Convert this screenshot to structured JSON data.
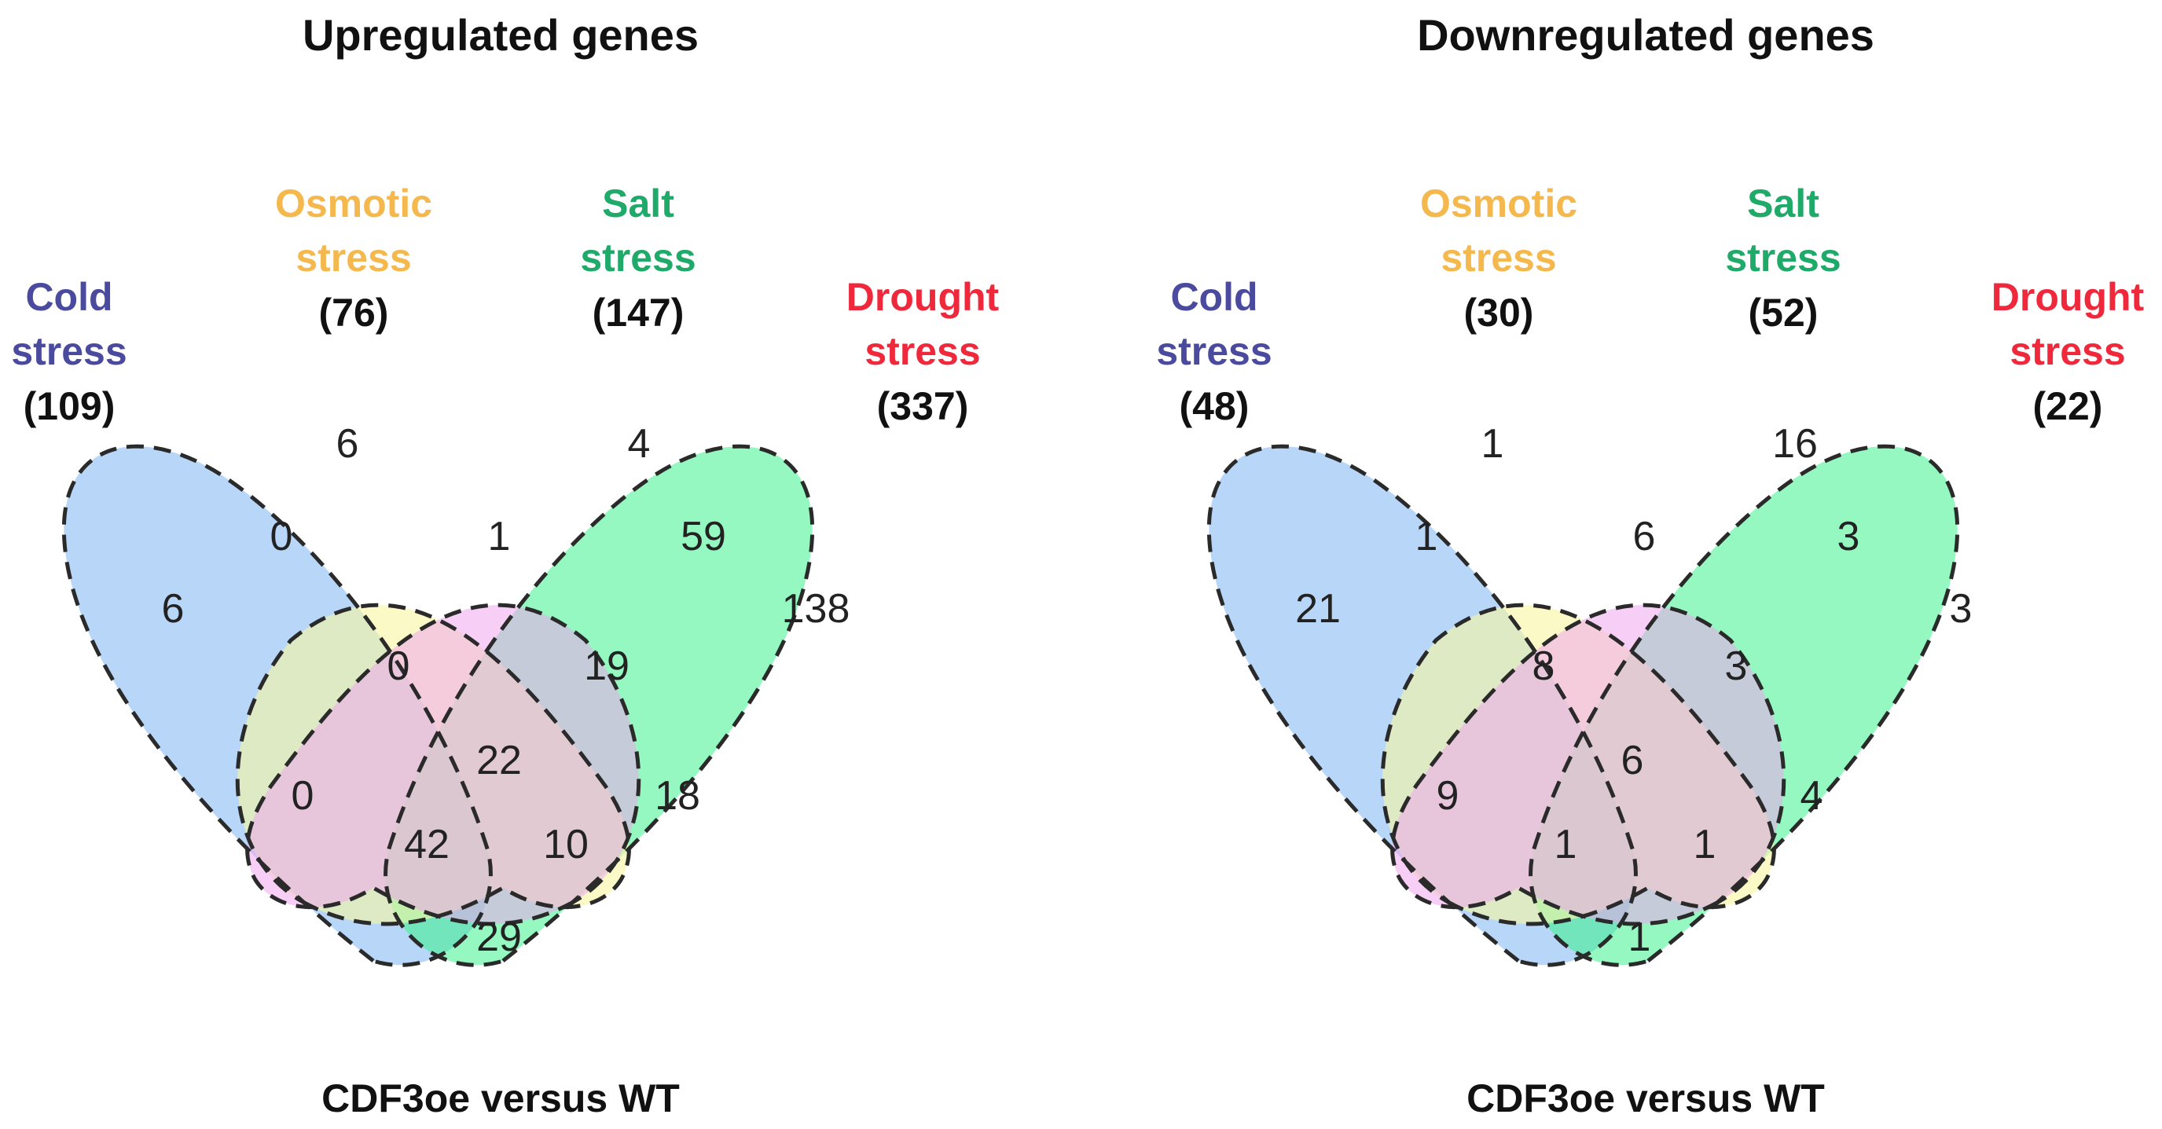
{
  "colors": {
    "cold": "#4a4a9e",
    "osmotic": "#f5b84d",
    "salt": "#1faa6a",
    "drought": "#f0283c",
    "fill_cold": "#9fc8f5",
    "fill_osmotic": "#f8f7a0",
    "fill_salt": "#eea5ef",
    "fill_drought": "#3cf38c"
  },
  "panels": [
    {
      "title": "Upregulated genes",
      "caption": "CDF3oe versus WT",
      "sets": {
        "cold": {
          "name_line1": "Cold",
          "name_line2": "stress",
          "count": "(109)"
        },
        "osmotic": {
          "name_line1": "Osmotic",
          "name_line2": "stress",
          "count": "(76)"
        },
        "salt": {
          "name_line1": "Salt",
          "name_line2": "stress",
          "count": "(147)"
        },
        "drought": {
          "name_line1": "Drought",
          "name_line2": "stress",
          "count": "(337)"
        }
      },
      "regions": {
        "C": "6",
        "O": "6",
        "S": "4",
        "D": "138",
        "CO": "0",
        "OS": "1",
        "SD": "59",
        "COS": "0",
        "OSD": "19",
        "COSD": "22",
        "CS": "0",
        "OD": "18",
        "CSD": "42",
        "COD": "10",
        "CD": "29"
      }
    },
    {
      "title": "Downregulated genes",
      "caption": "CDF3oe versus WT",
      "sets": {
        "cold": {
          "name_line1": "Cold",
          "name_line2": "stress",
          "count": "(48)"
        },
        "osmotic": {
          "name_line1": "Osmotic",
          "name_line2": "stress",
          "count": "(30)"
        },
        "salt": {
          "name_line1": "Salt",
          "name_line2": "stress",
          "count": "(52)"
        },
        "drought": {
          "name_line1": "Drought",
          "name_line2": "stress",
          "count": "(22)"
        }
      },
      "regions": {
        "C": "21",
        "O": "1",
        "S": "16",
        "D": "3",
        "CO": "1",
        "OS": "6",
        "SD": "3",
        "COS": "8",
        "OSD": "3",
        "COSD": "6",
        "CS": "9",
        "OD": "4",
        "CSD": "1",
        "COD": "1",
        "CD": "1"
      }
    }
  ]
}
